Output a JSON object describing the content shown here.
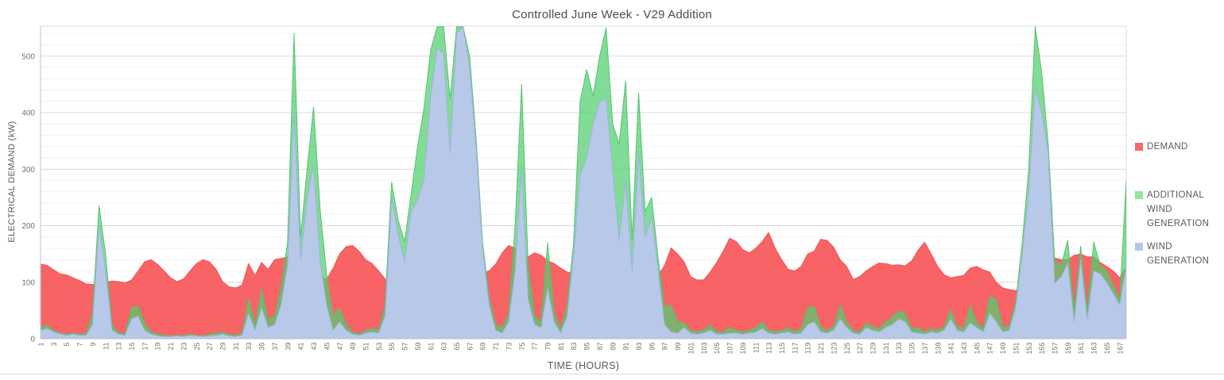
{
  "chart_data": {
    "type": "area",
    "title": "Controlled June Week - V29 Addition",
    "xlabel": "TIME (HOURS)",
    "ylabel": "ELECTRICAL DEMAND (kW)",
    "ylim": [
      0,
      550
    ],
    "grid": {
      "major_every": 100,
      "minor_every": 20,
      "major_color": "#d9d9d9",
      "minor_color": "#f2f2f2"
    },
    "legend_position": "right",
    "y_ticks": [
      0,
      100,
      200,
      300,
      400,
      500
    ],
    "x_tick_labels": [
      1,
      3,
      5,
      7,
      9,
      11,
      13,
      15,
      17,
      19,
      21,
      23,
      25,
      27,
      29,
      31,
      33,
      35,
      37,
      39,
      41,
      43,
      45,
      47,
      49,
      51,
      53,
      55,
      57,
      59,
      61,
      63,
      65,
      67,
      69,
      71,
      73,
      75,
      77,
      79,
      81,
      83,
      85,
      87,
      89,
      91,
      93,
      95,
      97,
      99,
      101,
      103,
      105,
      107,
      109,
      111,
      113,
      115,
      117,
      119,
      121,
      123,
      125,
      127,
      129,
      131,
      133,
      135,
      137,
      139,
      141,
      143,
      145,
      147,
      149,
      151,
      153,
      155,
      157,
      159,
      161,
      163,
      165,
      167
    ],
    "x_hours": {
      "start": 1,
      "end": 168
    },
    "series": [
      {
        "name": "DEMAND",
        "color": "#F8696B",
        "fill": "rgba(247,72,74,0.85)",
        "stroke": "#ED5A5C",
        "values": [
          132,
          130,
          122,
          115,
          113,
          108,
          103,
          97,
          96,
          98,
          100,
          102,
          101,
          99,
          104,
          120,
          136,
          140,
          132,
          120,
          108,
          101,
          106,
          120,
          133,
          140,
          136,
          123,
          101,
          92,
          90,
          95,
          133,
          112,
          135,
          123,
          140,
          142,
          145,
          138,
          128,
          120,
          115,
          112,
          105,
          125,
          150,
          163,
          165,
          155,
          140,
          133,
          120,
          106,
          100,
          100,
          102,
          105,
          110,
          112,
          115,
          118,
          120,
          118,
          115,
          112,
          110,
          112,
          115,
          120,
          132,
          152,
          165,
          160,
          150,
          145,
          152,
          148,
          138,
          133,
          125,
          118,
          115,
          112,
          110,
          112,
          115,
          118,
          120,
          122,
          125,
          122,
          120,
          118,
          115,
          112,
          130,
          161,
          150,
          136,
          110,
          104,
          104,
          118,
          135,
          155,
          178,
          172,
          158,
          152,
          160,
          172,
          188,
          160,
          140,
          123,
          120,
          128,
          150,
          155,
          176,
          174,
          162,
          140,
          128,
          105,
          110,
          120,
          128,
          134,
          133,
          130,
          131,
          129,
          138,
          157,
          171,
          150,
          128,
          113,
          108,
          110,
          112,
          125,
          128,
          122,
          118,
          100,
          90,
          87,
          85,
          88,
          95,
          105,
          115,
          125,
          143,
          140,
          140,
          148,
          150,
          145,
          145,
          135,
          128,
          120,
          108,
          128
        ]
      },
      {
        "name": "ADDITIONAL WIND GENERATION",
        "color": "#90E79B",
        "fill": "rgba(80,208,110,0.72)",
        "stroke": "#57C06F",
        "values": [
          20,
          24,
          15,
          10,
          8,
          10,
          8,
          8,
          45,
          235,
          150,
          25,
          10,
          8,
          55,
          58,
          28,
          12,
          8,
          6,
          5,
          6,
          5,
          8,
          6,
          5,
          8,
          10,
          12,
          8,
          6,
          10,
          72,
          25,
          88,
          35,
          40,
          90,
          170,
          540,
          180,
          300,
          410,
          230,
          115,
          40,
          55,
          25,
          12,
          8,
          15,
          18,
          15,
          60,
          277,
          210,
          172,
          255,
          340,
          410,
          510,
          552,
          552,
          425,
          552,
          552,
          500,
          355,
          170,
          75,
          25,
          20,
          45,
          200,
          450,
          130,
          40,
          30,
          170,
          45,
          18,
          60,
          170,
          420,
          476,
          430,
          500,
          550,
          380,
          345,
          456,
          175,
          435,
          225,
          250,
          142,
          55,
          60,
          30,
          28,
          15,
          12,
          15,
          25,
          12,
          12,
          20,
          15,
          12,
          15,
          20,
          30,
          15,
          12,
          15,
          20,
          12,
          18,
          55,
          58,
          20,
          15,
          22,
          60,
          30,
          15,
          12,
          28,
          22,
          18,
          30,
          38,
          50,
          45,
          18,
          20,
          12,
          18,
          15,
          22,
          52,
          22,
          18,
          60,
          30,
          18,
          75,
          70,
          20,
          22,
          65,
          170,
          300,
          552,
          470,
          345,
          139,
          130,
          174,
          50,
          164,
          50,
          171,
          130,
          120,
          95,
          70,
          278
        ]
      },
      {
        "name": "WIND GENERATION",
        "color": "#B4C7E7",
        "fill": "rgba(183,200,232,1)",
        "stroke": "#9DB3DA",
        "values": [
          15,
          18,
          12,
          8,
          6,
          8,
          6,
          6,
          25,
          200,
          120,
          15,
          8,
          6,
          35,
          40,
          15,
          8,
          5,
          4,
          4,
          5,
          4,
          6,
          5,
          4,
          5,
          6,
          8,
          5,
          4,
          6,
          45,
          15,
          55,
          20,
          25,
          60,
          130,
          400,
          140,
          250,
          308,
          140,
          60,
          15,
          30,
          15,
          8,
          6,
          10,
          12,
          10,
          40,
          250,
          185,
          136,
          225,
          245,
          285,
          430,
          515,
          505,
          330,
          540,
          552,
          480,
          340,
          160,
          60,
          15,
          10,
          30,
          120,
          305,
          70,
          25,
          20,
          90,
          30,
          10,
          40,
          150,
          290,
          320,
          380,
          420,
          425,
          300,
          175,
          280,
          120,
          328,
          180,
          215,
          120,
          25,
          12,
          10,
          20,
          10,
          8,
          10,
          15,
          8,
          8,
          10,
          10,
          8,
          10,
          12,
          18,
          10,
          8,
          10,
          12,
          8,
          10,
          25,
          30,
          12,
          10,
          15,
          35,
          20,
          10,
          8,
          20,
          15,
          12,
          20,
          25,
          35,
          30,
          12,
          10,
          8,
          12,
          10,
          15,
          35,
          15,
          12,
          28,
          20,
          12,
          45,
          30,
          12,
          15,
          55,
          150,
          260,
          442,
          400,
          330,
          98,
          110,
          133,
          30,
          140,
          35,
          120,
          115,
          100,
          80,
          60,
          130
        ]
      }
    ]
  }
}
